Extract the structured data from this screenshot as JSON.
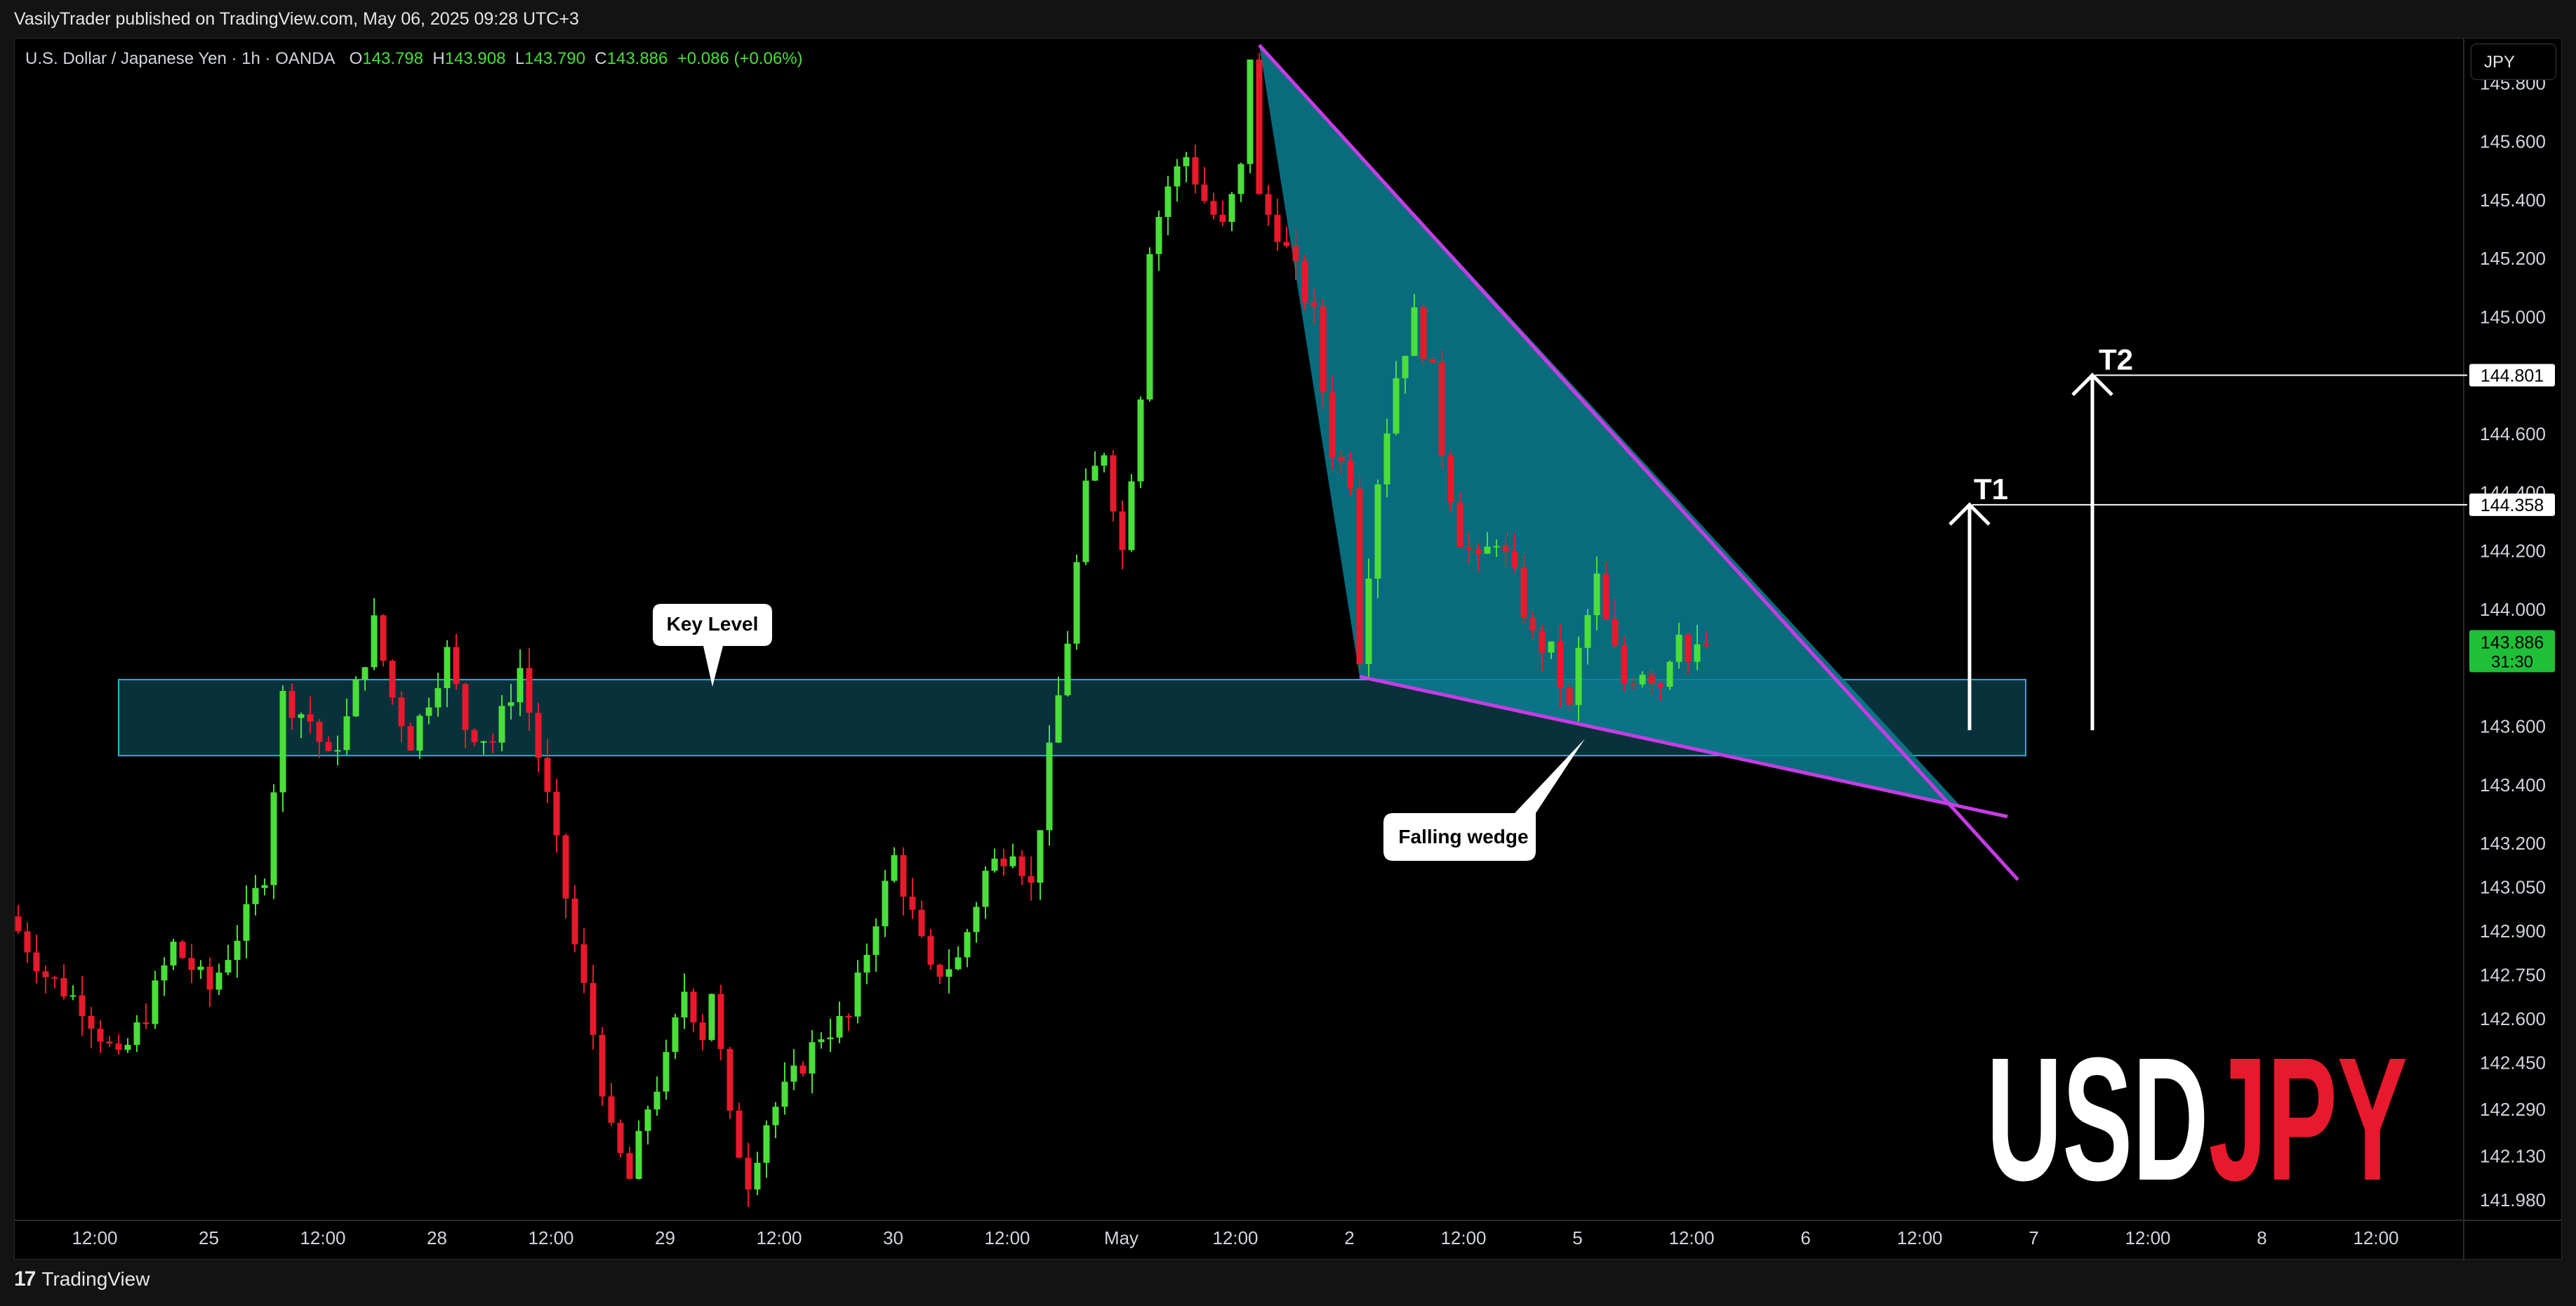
{
  "header": {
    "published": "VasilyTrader published on TradingView.com, May 06, 2025 09:28 UTC+3"
  },
  "legend": {
    "symbol": "U.S. Dollar / Japanese Yen · 1h · OANDA",
    "open_label": "O",
    "open": "143.798",
    "high_label": "H",
    "high": "143.908",
    "low_label": "L",
    "low": "143.790",
    "close_label": "C",
    "close": "143.886",
    "change": "+0.086 (+0.06%)"
  },
  "currency_button": "JPY",
  "footer": {
    "brand": "TradingView",
    "brand_icon": "tradingview-logo-icon"
  },
  "watermark": {
    "base": "USD",
    "quote": "JPY",
    "base_color": "#ffffff",
    "quote_color": "#e8192c"
  },
  "colors": {
    "up": "#4ade3a",
    "down": "#e8192c",
    "wedge_fill": "#0b7f93",
    "wedge_line": "#c73ce6",
    "zone": "#0e5a6b"
  },
  "chart_data": {
    "type": "candlestick",
    "y_ticks": [
      "145.800",
      "145.600",
      "145.400",
      "145.200",
      "145.000",
      "144.600",
      "144.400",
      "144.200",
      "144.000",
      "143.600",
      "143.400",
      "143.200",
      "143.050",
      "142.900",
      "142.750",
      "142.600",
      "142.450",
      "142.290",
      "142.130",
      "141.980"
    ],
    "x_ticks": [
      "12:00",
      "25",
      "12:00",
      "28",
      "12:00",
      "29",
      "12:00",
      "30",
      "12:00",
      "May",
      "12:00",
      "2",
      "12:00",
      "5",
      "12:00",
      "6",
      "12:00",
      "7",
      "12:00",
      "8",
      "12:00"
    ],
    "ylim": [
      141.93,
      145.94
    ],
    "x_range": [
      0,
      252
    ],
    "close_path": [
      [
        0,
        142.95
      ],
      [
        4,
        142.75
      ],
      [
        8,
        142.65
      ],
      [
        12,
        142.45
      ],
      [
        15,
        142.62
      ],
      [
        18,
        142.85
      ],
      [
        22,
        142.7
      ],
      [
        26,
        142.95
      ],
      [
        28,
        143.1
      ],
      [
        30,
        143.7
      ],
      [
        33,
        143.62
      ],
      [
        35,
        143.48
      ],
      [
        37,
        143.62
      ],
      [
        40,
        143.95
      ],
      [
        42,
        143.7
      ],
      [
        44,
        143.55
      ],
      [
        46,
        143.7
      ],
      [
        48,
        143.85
      ],
      [
        50,
        143.6
      ],
      [
        53,
        143.55
      ],
      [
        56,
        143.8
      ],
      [
        58,
        143.5
      ],
      [
        59,
        143.35
      ],
      [
        62,
        142.85
      ],
      [
        64,
        142.55
      ],
      [
        66,
        142.2
      ],
      [
        68,
        142.05
      ],
      [
        70,
        142.3
      ],
      [
        72,
        142.45
      ],
      [
        74,
        142.7
      ],
      [
        76,
        142.55
      ],
      [
        77,
        142.7
      ],
      [
        79,
        142.25
      ],
      [
        81,
        142.05
      ],
      [
        83,
        142.25
      ],
      [
        86,
        142.4
      ],
      [
        89,
        142.55
      ],
      [
        92,
        142.6
      ],
      [
        95,
        142.95
      ],
      [
        97,
        143.15
      ],
      [
        99,
        142.95
      ],
      [
        101,
        142.75
      ],
      [
        104,
        142.8
      ],
      [
        107,
        143.1
      ],
      [
        110,
        143.2
      ],
      [
        112,
        143.05
      ],
      [
        114,
        143.5
      ],
      [
        116,
        143.9
      ],
      [
        118,
        144.4
      ],
      [
        120,
        144.55
      ],
      [
        122,
        144.2
      ],
      [
        124,
        144.75
      ],
      [
        125,
        145.25
      ],
      [
        127,
        145.45
      ],
      [
        129,
        145.55
      ],
      [
        131,
        145.4
      ],
      [
        133,
        145.3
      ],
      [
        135,
        145.5
      ],
      [
        136,
        145.9
      ],
      [
        137,
        145.4
      ],
      [
        139,
        145.3
      ],
      [
        141,
        145.15
      ],
      [
        143,
        145.0
      ],
      [
        144,
        144.75
      ],
      [
        145,
        144.55
      ],
      [
        147,
        144.45
      ],
      [
        148,
        143.85
      ],
      [
        150,
        144.45
      ],
      [
        152,
        144.8
      ],
      [
        154,
        145.0
      ],
      [
        156,
        144.8
      ],
      [
        157,
        144.55
      ],
      [
        159,
        144.25
      ],
      [
        161,
        144.15
      ],
      [
        163,
        144.25
      ],
      [
        165,
        144.1
      ],
      [
        167,
        143.9
      ],
      [
        169,
        143.85
      ],
      [
        171,
        143.65
      ],
      [
        172,
        143.85
      ],
      [
        174,
        144.1
      ],
      [
        175,
        143.95
      ],
      [
        177,
        143.75
      ],
      [
        179,
        143.8
      ],
      [
        181,
        143.75
      ],
      [
        183,
        143.95
      ],
      [
        184,
        143.82
      ],
      [
        186,
        143.88
      ]
    ],
    "annotations": {
      "key_level_zone": {
        "y_top": 143.76,
        "y_bottom": 143.5,
        "x_from": 11,
        "x_to": 220,
        "label": "Key Level"
      },
      "falling_wedge": {
        "apex_high": [
          136,
          145.93
        ],
        "low_point": [
          147,
          143.77
        ],
        "upper_end": [
          195,
          143.05
        ],
        "lower_end": [
          197,
          143.34
        ],
        "label": "Falling wedge"
      },
      "targets": [
        {
          "name": "T1",
          "price": 144.358,
          "label": "144.358"
        },
        {
          "name": "T2",
          "price": 144.801,
          "label": "144.801"
        }
      ],
      "last_price": {
        "price": 143.886,
        "label": "143.886",
        "countdown": "31:30"
      }
    }
  }
}
